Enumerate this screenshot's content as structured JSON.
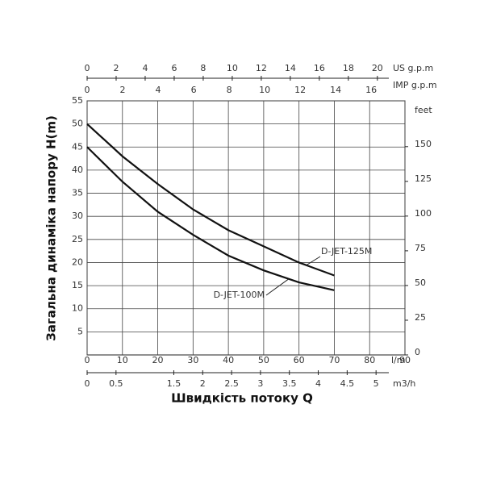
{
  "chart_data": {
    "type": "line",
    "y_label": "Загальна динаміка напору H(m)",
    "x_label": "Швидкість потоку Q",
    "x_unit": "l/m",
    "xlim": [
      0,
      90
    ],
    "xticks": [
      0,
      10,
      20,
      30,
      40,
      50,
      60,
      70,
      80,
      90
    ],
    "ylim": [
      0,
      55
    ],
    "yticks": [
      5,
      10,
      15,
      20,
      25,
      30,
      35,
      40,
      45,
      50,
      55
    ],
    "y2_unit": "feet",
    "y2lim": [
      0,
      183
    ],
    "y2ticks": [
      0,
      25,
      50,
      75,
      100,
      125,
      150
    ],
    "grid": true,
    "top_axes": [
      {
        "unit": "US g.p.m",
        "xlim": [
          0,
          21.9
        ],
        "xticks": [
          0,
          2,
          4,
          6,
          8,
          10,
          12,
          14,
          16,
          18,
          20
        ]
      },
      {
        "unit": "IMP g.p.m",
        "xlim": [
          0,
          17.9
        ],
        "xticks": [
          0,
          2,
          4,
          6,
          8,
          10,
          12,
          14,
          16
        ]
      }
    ],
    "bottom_axis": {
      "unit": "m3/h",
      "xlim": [
        0,
        5.5
      ],
      "xticks": [
        0,
        0.5,
        1.5,
        2,
        2.5,
        3,
        3.5,
        4,
        4.5,
        5
      ]
    },
    "series": [
      {
        "name": "D-JET-125M",
        "color": "#111111",
        "x": [
          0,
          10,
          20,
          30,
          40,
          50,
          60,
          70
        ],
        "values": [
          50,
          43,
          37,
          31.5,
          27,
          23.5,
          20,
          17.2
        ]
      },
      {
        "name": "D-JET-100M",
        "color": "#111111",
        "x": [
          0,
          10,
          20,
          30,
          40,
          50,
          60,
          70
        ],
        "values": [
          45,
          37.5,
          31,
          26,
          21.5,
          18.3,
          15.7,
          14
        ]
      }
    ],
    "annotations": [
      {
        "text": "D-JET-125M",
        "x": 62,
        "y": 19.4
      },
      {
        "text": "D-JET-100M",
        "x": 57,
        "y": 16.4
      }
    ]
  }
}
